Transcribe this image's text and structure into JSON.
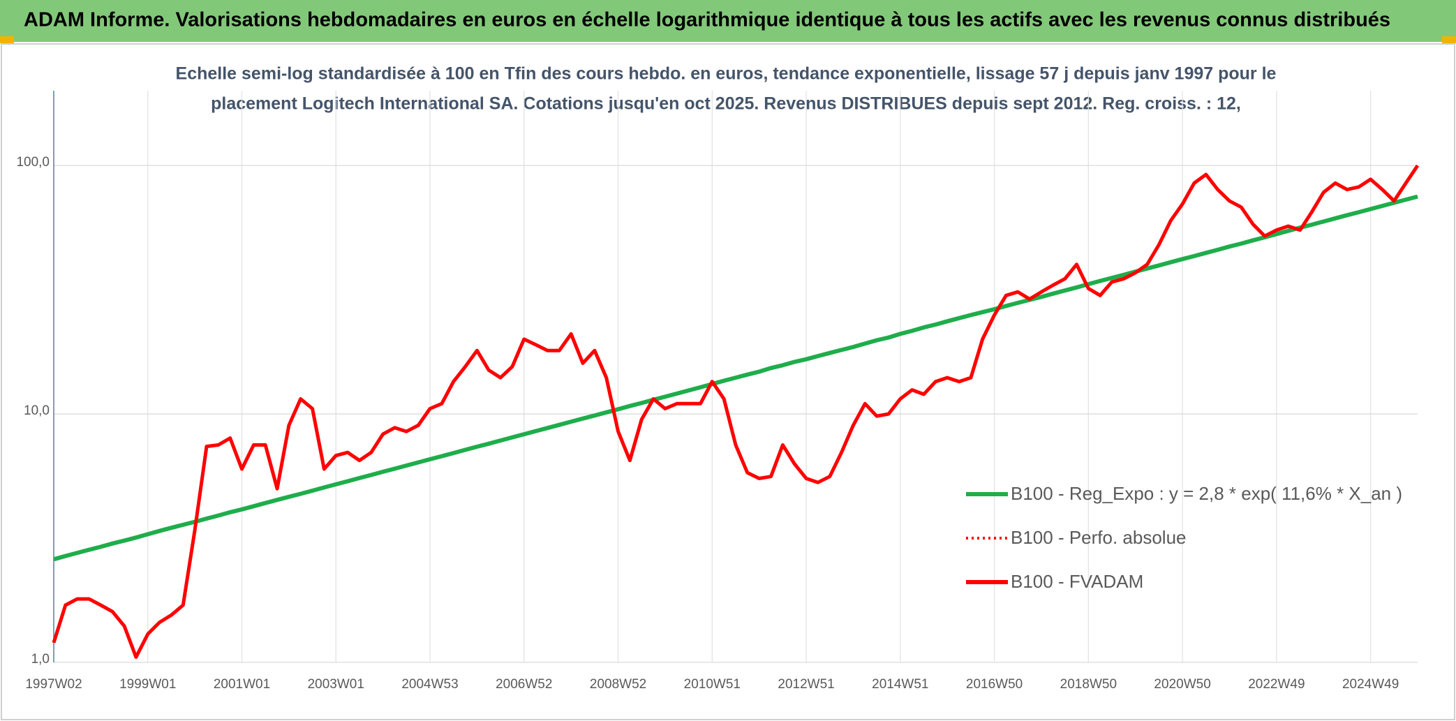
{
  "chart_data": {
    "type": "line",
    "title": "ADAM Informe. Valorisations hebdomadaires en euros en échelle logarithmique identique à tous les actifs avec les revenus connus distribués",
    "subtitle": [
      "Echelle semi-log standardisée à 100 en Tfin des cours hebdo. en euros, tendance exponentielle, lissage 57 j depuis janv 1997 pour le",
      "placement Logitech International SA. Cotations jusqu'en oct 2025. Revenus DISTRIBUES depuis sept 2012. Reg. croiss. : 12,"
    ],
    "yscale": "log",
    "ylim": [
      1,
      200
    ],
    "yticks": [
      {
        "value": 1,
        "label": "1,0"
      },
      {
        "value": 10,
        "label": "10,0"
      },
      {
        "value": 100,
        "label": "100,0"
      }
    ],
    "grid": true,
    "legend": "right",
    "categories": [
      "1997W02",
      null,
      null,
      null,
      null,
      null,
      null,
      null,
      "1999W01",
      null,
      null,
      null,
      null,
      null,
      null,
      null,
      "2001W01",
      null,
      null,
      null,
      null,
      null,
      null,
      null,
      "2003W01",
      null,
      null,
      null,
      null,
      null,
      null,
      null,
      "2004W53",
      null,
      null,
      null,
      null,
      null,
      null,
      null,
      "2006W52",
      null,
      null,
      null,
      null,
      null,
      null,
      null,
      "2008W52",
      null,
      null,
      null,
      null,
      null,
      null,
      null,
      "2010W51",
      null,
      null,
      null,
      null,
      null,
      null,
      null,
      "2012W51",
      null,
      null,
      null,
      null,
      null,
      null,
      null,
      "2014W51",
      null,
      null,
      null,
      null,
      null,
      null,
      null,
      "2016W50",
      null,
      null,
      null,
      null,
      null,
      null,
      null,
      "2018W50",
      null,
      null,
      null,
      null,
      null,
      null,
      null,
      "2020W50",
      null,
      null,
      null,
      null,
      null,
      null,
      null,
      "2022W49",
      null,
      null,
      null,
      null,
      null,
      null,
      null,
      "2024W49",
      null,
      null,
      null,
      null
    ],
    "series": [
      {
        "name": "B100 - Reg_Expo : y = 2,8 * exp( 11,6% *  X_an )",
        "color": "#1fad4b",
        "style": "solid",
        "values": [
          2.6,
          2.68,
          2.76,
          2.84,
          2.92,
          3.01,
          3.09,
          3.18,
          3.28,
          3.38,
          3.48,
          3.58,
          3.68,
          3.79,
          3.9,
          4.02,
          4.13,
          4.25,
          4.38,
          4.51,
          4.64,
          4.77,
          4.91,
          5.06,
          5.21,
          5.36,
          5.52,
          5.68,
          5.85,
          6.02,
          6.2,
          6.38,
          6.57,
          6.76,
          6.96,
          7.17,
          7.38,
          7.59,
          7.82,
          8.05,
          8.29,
          8.53,
          8.78,
          9.04,
          9.31,
          9.58,
          9.86,
          10.15,
          10.45,
          10.76,
          11.07,
          11.4,
          11.73,
          12.08,
          12.43,
          12.8,
          13.2,
          13.6,
          14.0,
          14.4,
          14.8,
          15.3,
          15.7,
          16.2,
          16.6,
          17.1,
          17.6,
          18.1,
          18.6,
          19.2,
          19.8,
          20.3,
          21.0,
          21.6,
          22.3,
          22.9,
          23.6,
          24.3,
          25.0,
          25.7,
          26.4,
          27.2,
          28.0,
          28.8,
          29.6,
          30.5,
          31.4,
          32.3,
          33.3,
          34.3,
          35.3,
          36.3,
          37.4,
          38.5,
          39.6,
          40.8,
          42.0,
          43.2,
          44.5,
          45.8,
          47.2,
          48.5,
          50.0,
          51.4,
          53.0,
          54.6,
          56.2,
          57.8,
          59.5,
          61.3,
          63.1,
          64.9,
          66.8,
          68.8,
          70.8,
          72.9,
          75.0
        ]
      },
      {
        "name": "B100 - Perfo. absolue",
        "color": "#ff0000",
        "style": "dotted",
        "values": [
          1.2,
          1.7,
          1.8,
          1.8,
          1.7,
          1.6,
          1.4,
          1.05,
          1.3,
          1.45,
          1.55,
          1.7,
          3.4,
          7.4,
          7.5,
          8,
          6.0,
          7.5,
          7.5,
          5.0,
          9,
          11.5,
          10.5,
          6.0,
          6.8,
          7.0,
          6.5,
          7.0,
          8.3,
          8.8,
          8.5,
          9.0,
          10.5,
          11.0,
          13.5,
          15.5,
          18,
          15,
          14,
          15.5,
          20,
          19,
          18,
          18,
          21,
          16,
          18,
          14,
          8.5,
          6.5,
          9.5,
          11.5,
          10.5,
          11.0,
          11.0,
          11.0,
          13.5,
          11.5,
          7.5,
          5.8,
          5.5,
          5.6,
          7.5,
          6.3,
          5.5,
          5.3,
          5.6,
          7.0,
          9.0,
          11,
          9.8,
          10.0,
          11.5,
          12.5,
          12.0,
          13.5,
          14.0,
          13.5,
          14.0,
          20,
          25,
          30,
          31,
          29,
          31,
          33,
          35,
          40,
          32,
          30,
          34,
          35,
          37,
          40,
          48,
          60,
          70,
          85,
          92,
          80,
          72,
          68,
          58,
          52,
          55,
          57,
          55,
          65,
          78,
          85,
          80,
          82,
          88,
          80,
          72,
          85,
          100
        ]
      },
      {
        "name": "B100 - FVADAM",
        "color": "#ff0000",
        "style": "solid",
        "values": [
          1.2,
          1.7,
          1.8,
          1.8,
          1.7,
          1.6,
          1.4,
          1.05,
          1.3,
          1.45,
          1.55,
          1.7,
          3.4,
          7.4,
          7.5,
          8,
          6.0,
          7.5,
          7.5,
          5.0,
          9,
          11.5,
          10.5,
          6.0,
          6.8,
          7.0,
          6.5,
          7.0,
          8.3,
          8.8,
          8.5,
          9.0,
          10.5,
          11.0,
          13.5,
          15.5,
          18,
          15,
          14,
          15.5,
          20,
          19,
          18,
          18,
          21,
          16,
          18,
          14,
          8.5,
          6.5,
          9.5,
          11.5,
          10.5,
          11.0,
          11.0,
          11.0,
          13.5,
          11.5,
          7.5,
          5.8,
          5.5,
          5.6,
          7.5,
          6.3,
          5.5,
          5.3,
          5.6,
          7.0,
          9.0,
          11,
          9.8,
          10.0,
          11.5,
          12.5,
          12.0,
          13.5,
          14.0,
          13.5,
          14.0,
          20,
          25,
          30,
          31,
          29,
          31,
          33,
          35,
          40,
          32,
          30,
          34,
          35,
          37,
          40,
          48,
          60,
          70,
          85,
          92,
          80,
          72,
          68,
          58,
          52,
          55,
          57,
          55,
          65,
          78,
          85,
          80,
          82,
          88,
          80,
          72,
          85,
          100
        ]
      }
    ]
  }
}
